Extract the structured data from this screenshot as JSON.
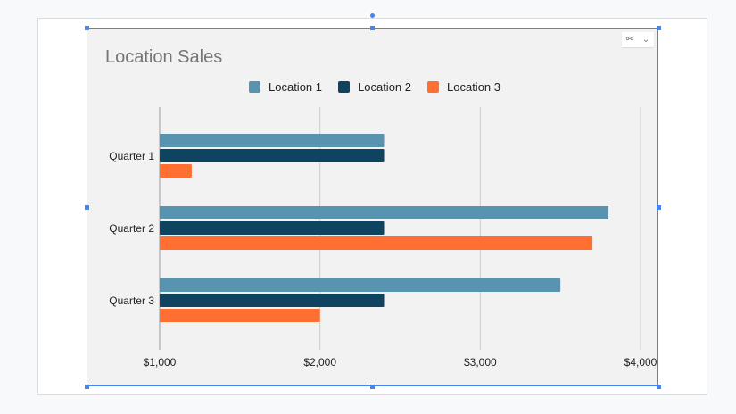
{
  "chart_data": {
    "type": "bar",
    "orientation": "horizontal",
    "title": "Location Sales",
    "categories": [
      "Quarter 1",
      "Quarter 2",
      "Quarter 3"
    ],
    "series": [
      {
        "name": "Location 1",
        "color": "#5893b0",
        "values": [
          2400,
          3800,
          3500
        ]
      },
      {
        "name": "Location 2",
        "color": "#0f4461",
        "values": [
          2400,
          2400,
          2400
        ]
      },
      {
        "name": "Location 3",
        "color": "#ff6f31",
        "values": [
          1200,
          3700,
          2000
        ]
      }
    ],
    "xlim": [
      1000,
      4000
    ],
    "xticks": [
      1000,
      2000,
      3000,
      4000
    ],
    "xtick_labels": [
      "$1,000",
      "$2,000",
      "$3,000",
      "$4,000"
    ],
    "grid": true,
    "legend": "top"
  },
  "ui": {
    "link_icon": "link-icon",
    "dropdown_icon": "chevron-down-icon",
    "selection_color": "#4285f4"
  }
}
